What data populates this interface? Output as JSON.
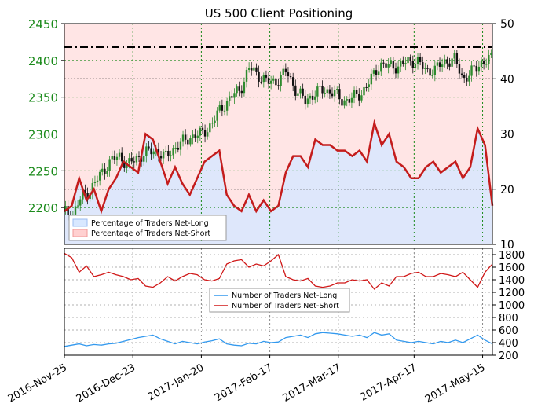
{
  "title": "US 500 Client Positioning",
  "colors": {
    "price_axis": "#1a8a1a",
    "candle_up": "#2e8b2e",
    "candle_down": "#111111",
    "net_long_line": "#3399ee",
    "net_short_line": "#d01818",
    "pct_line": "#c41c1c",
    "long_fill": "#d8e8ff",
    "short_fill": "#ffd0d0",
    "grid_green": "#1a8a1a",
    "grid_black": "#333333"
  },
  "chart_data": [
    {
      "type": "candlestick",
      "name": "price",
      "title": "US 500 Client Positioning",
      "ylim": [
        2150,
        2450
      ],
      "yticks": [
        2200,
        2250,
        2300,
        2350,
        2400,
        2450
      ],
      "reference_level": 2418,
      "days": 175,
      "close_anchors": [
        [
          0,
          2195
        ],
        [
          5,
          2190
        ],
        [
          10,
          2215
        ],
        [
          15,
          2225
        ],
        [
          20,
          2245
        ],
        [
          25,
          2262
        ],
        [
          30,
          2270
        ],
        [
          35,
          2258
        ],
        [
          40,
          2268
        ],
        [
          45,
          2275
        ],
        [
          50,
          2278
        ],
        [
          55,
          2268
        ],
        [
          60,
          2282
        ],
        [
          65,
          2290
        ],
        [
          70,
          2298
        ],
        [
          75,
          2300
        ],
        [
          80,
          2315
        ],
        [
          85,
          2335
        ],
        [
          90,
          2350
        ],
        [
          95,
          2360
        ],
        [
          100,
          2390
        ],
        [
          105,
          2380
        ],
        [
          110,
          2370
        ],
        [
          115,
          2372
        ],
        [
          120,
          2385
        ],
        [
          125,
          2360
        ],
        [
          130,
          2345
        ],
        [
          135,
          2355
        ],
        [
          140,
          2360
        ],
        [
          145,
          2357
        ],
        [
          150,
          2345
        ],
        [
          155,
          2348
        ],
        [
          160,
          2355
        ],
        [
          165,
          2372
        ],
        [
          170,
          2395
        ],
        [
          175,
          2392
        ],
        [
          180,
          2392
        ],
        [
          185,
          2398
        ],
        [
          190,
          2400
        ],
        [
          195,
          2385
        ],
        [
          200,
          2388
        ],
        [
          205,
          2398
        ],
        [
          210,
          2402
        ],
        [
          215,
          2375
        ],
        [
          220,
          2385
        ],
        [
          225,
          2398
        ],
        [
          230,
          2402
        ]
      ]
    },
    {
      "type": "line",
      "name": "percentage_net_long",
      "ylim": [
        10,
        50
      ],
      "yticks": [
        10,
        20,
        30,
        40,
        50
      ],
      "legend": [
        "Percentage of Traders Net-Long",
        "Percentage of Traders Net-Short"
      ],
      "legend_placement": "lower-left",
      "x": [
        0,
        4,
        8,
        12,
        16,
        20,
        24,
        28,
        32,
        36,
        40,
        44,
        48,
        52,
        56,
        60,
        64,
        68,
        72,
        76,
        80,
        84,
        88,
        92,
        96,
        100,
        104,
        108,
        112,
        116,
        120,
        124,
        128,
        132,
        136,
        140,
        144,
        148,
        152,
        156,
        160,
        164,
        168,
        172,
        176,
        180,
        184,
        188,
        192,
        196,
        200,
        204,
        208,
        212,
        216,
        220,
        224,
        228,
        232
      ],
      "values": [
        16,
        17,
        22,
        18,
        20,
        16,
        20,
        22,
        25,
        24,
        23,
        30,
        29,
        25,
        21,
        24,
        21,
        19,
        22,
        25,
        26,
        27,
        19,
        17,
        16,
        19,
        16,
        18,
        16,
        17,
        23,
        26,
        26,
        24,
        29,
        28,
        28,
        27,
        27,
        26,
        27,
        25,
        32,
        28,
        30,
        25,
        24,
        22,
        22,
        24,
        25,
        23,
        24,
        25,
        22,
        24,
        31,
        28,
        17
      ]
    },
    {
      "type": "line",
      "name": "trader_counts",
      "ylim": [
        200,
        1900
      ],
      "yticks": [
        200,
        400,
        600,
        800,
        1000,
        1200,
        1400,
        1600,
        1800
      ],
      "legend": [
        "Number of Traders Net-Long",
        "Number of Traders Net-Short"
      ],
      "legend_placement": "center",
      "x": [
        0,
        4,
        8,
        12,
        16,
        20,
        24,
        28,
        32,
        36,
        40,
        44,
        48,
        52,
        56,
        60,
        64,
        68,
        72,
        76,
        80,
        84,
        88,
        92,
        96,
        100,
        104,
        108,
        112,
        116,
        120,
        124,
        128,
        132,
        136,
        140,
        144,
        148,
        152,
        156,
        160,
        164,
        168,
        172,
        176,
        180,
        184,
        188,
        192,
        196,
        200,
        204,
        208,
        212,
        216,
        220,
        224,
        228,
        232
      ],
      "series": [
        {
          "name": "Number of Traders Net-Long",
          "values": [
            340,
            360,
            380,
            350,
            370,
            360,
            380,
            390,
            420,
            450,
            480,
            500,
            520,
            460,
            420,
            380,
            420,
            400,
            380,
            410,
            430,
            460,
            380,
            360,
            350,
            390,
            380,
            420,
            400,
            410,
            480,
            500,
            520,
            480,
            540,
            560,
            550,
            540,
            520,
            500,
            520,
            480,
            560,
            520,
            540,
            440,
            420,
            400,
            420,
            400,
            380,
            420,
            400,
            440,
            400,
            460,
            520,
            440,
            380
          ]
        },
        {
          "name": "Number of Traders Net-Short",
          "values": [
            1820,
            1750,
            1520,
            1620,
            1450,
            1480,
            1520,
            1480,
            1450,
            1400,
            1420,
            1300,
            1280,
            1350,
            1450,
            1380,
            1450,
            1500,
            1480,
            1400,
            1380,
            1420,
            1650,
            1700,
            1720,
            1600,
            1650,
            1620,
            1700,
            1800,
            1450,
            1400,
            1380,
            1420,
            1300,
            1280,
            1300,
            1350,
            1350,
            1400,
            1380,
            1400,
            1250,
            1350,
            1300,
            1450,
            1450,
            1500,
            1520,
            1450,
            1450,
            1500,
            1480,
            1450,
            1520,
            1400,
            1280,
            1520,
            1650
          ]
        }
      ]
    }
  ],
  "x_dates": [
    "2016-Nov-25",
    "2016-Dec-23",
    "2017-Jan-20",
    "2017-Feb-17",
    "2017-Mar-17",
    "2017-Apr-17",
    "2017-May-15"
  ]
}
